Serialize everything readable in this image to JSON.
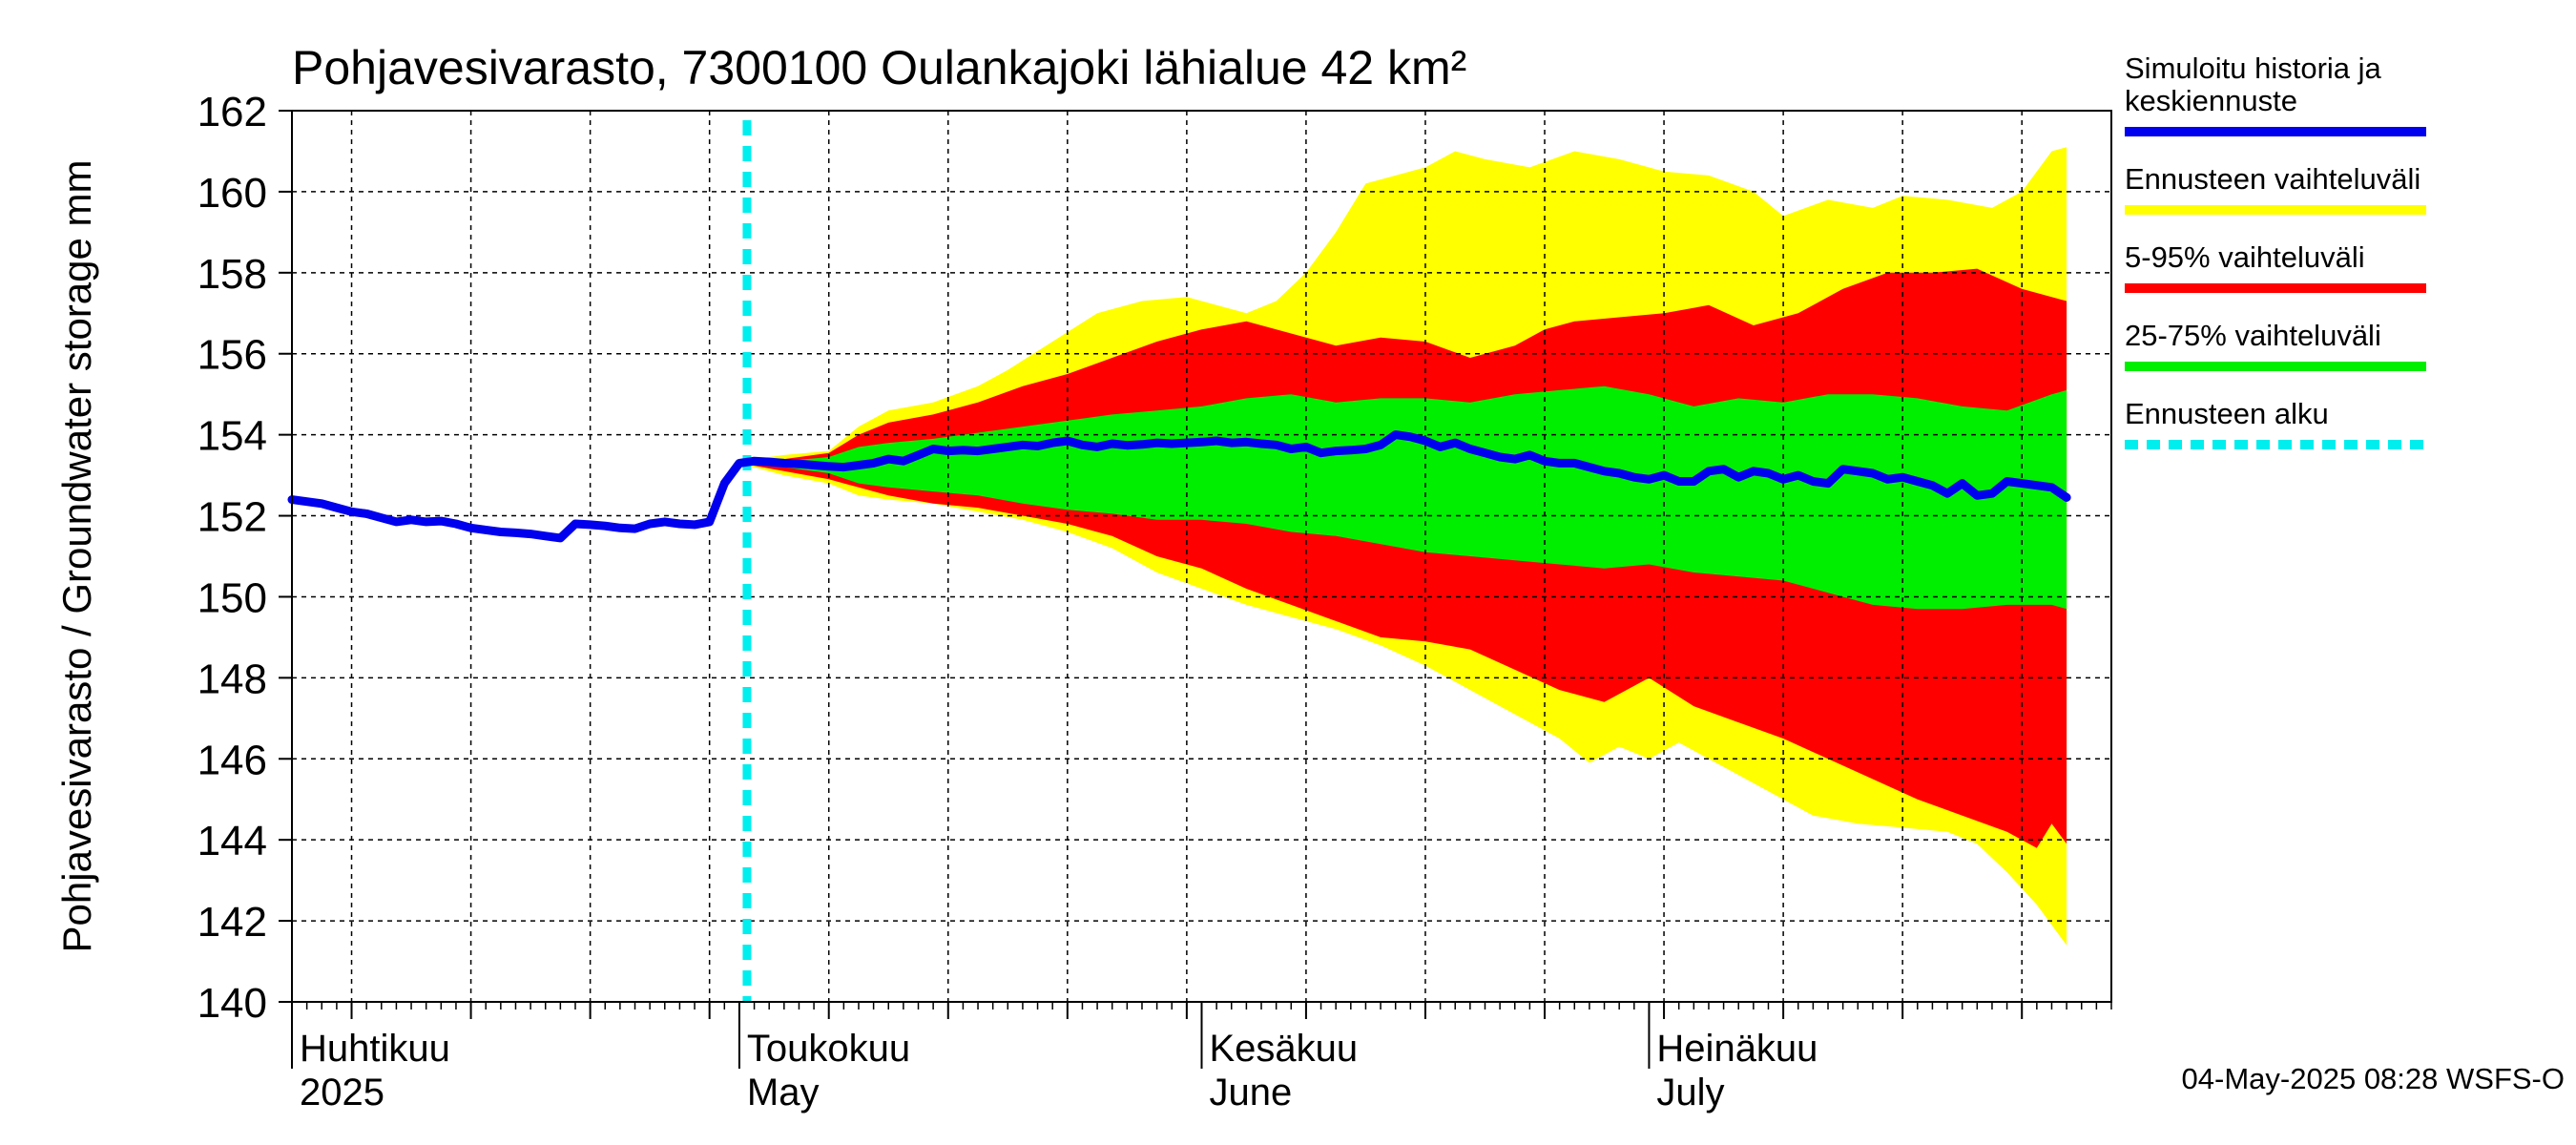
{
  "chart_data": {
    "type": "area",
    "title": "Pohjavesivarasto, 7300100 Oulankajoki lähialue 42 km²",
    "ylabel": "Pohjavesivarasto / Groundwater storage   mm",
    "ylim": [
      140,
      162
    ],
    "yticks": [
      140,
      142,
      144,
      146,
      148,
      150,
      152,
      154,
      156,
      158,
      160,
      162
    ],
    "x_start": "2025-03-31",
    "x_end": "2025-07-31",
    "forecast_start_day": 30,
    "months": [
      {
        "day": 0,
        "fi": "Huhtikuu",
        "en": "2025"
      },
      {
        "day": 30,
        "fi": "Toukokuu",
        "en": "May"
      },
      {
        "day": 61,
        "fi": "Kesäkuu",
        "en": "June"
      },
      {
        "day": 91,
        "fi": "Heinäkuu",
        "en": "July"
      }
    ],
    "timestamp": "04-May-2025 08:28 WSFS-O",
    "legend": [
      {
        "label": "Simuloitu historia ja keskiennuste",
        "lines": [
          "Simuloitu historia ja",
          "keskiennuste"
        ],
        "color": "#0000ee",
        "style": "solid"
      },
      {
        "label": "Ennusteen vaihteluväli",
        "lines": [
          "Ennusteen vaihteluväli"
        ],
        "color": "#ffff00",
        "style": "solid"
      },
      {
        "label": "5-95% vaihteluväli",
        "lines": [
          "5-95% vaihteluväli"
        ],
        "color": "#ff0000",
        "style": "solid"
      },
      {
        "label": "25-75% vaihteluväli",
        "lines": [
          "25-75% vaihteluväli"
        ],
        "color": "#00ee00",
        "style": "solid"
      },
      {
        "label": "Ennusteen alku",
        "lines": [
          "Ennusteen alku"
        ],
        "color": "#00eeee",
        "style": "dashed"
      }
    ],
    "series": {
      "median": {
        "name": "Simuloitu historia ja keskiennuste",
        "points": [
          [
            0,
            152.4
          ],
          [
            1,
            152.35
          ],
          [
            2,
            152.3
          ],
          [
            3,
            152.2
          ],
          [
            4,
            152.1
          ],
          [
            5,
            152.05
          ],
          [
            6,
            151.95
          ],
          [
            7,
            151.85
          ],
          [
            8,
            151.9
          ],
          [
            9,
            151.85
          ],
          [
            10,
            151.87
          ],
          [
            11,
            151.8
          ],
          [
            12,
            151.7
          ],
          [
            13,
            151.65
          ],
          [
            14,
            151.6
          ],
          [
            15,
            151.58
          ],
          [
            16,
            151.55
          ],
          [
            17,
            151.5
          ],
          [
            18,
            151.45
          ],
          [
            19,
            151.8
          ],
          [
            20,
            151.78
          ],
          [
            21,
            151.75
          ],
          [
            22,
            151.7
          ],
          [
            23,
            151.68
          ],
          [
            24,
            151.8
          ],
          [
            25,
            151.85
          ],
          [
            26,
            151.8
          ],
          [
            27,
            151.78
          ],
          [
            28,
            151.85
          ],
          [
            29,
            152.8
          ],
          [
            30,
            153.3
          ],
          [
            31,
            153.35
          ],
          [
            32,
            153.33
          ],
          [
            33,
            153.3
          ],
          [
            34,
            153.28
          ],
          [
            35,
            153.25
          ],
          [
            36,
            153.22
          ],
          [
            37,
            153.2
          ],
          [
            38,
            153.25
          ],
          [
            39,
            153.3
          ],
          [
            40,
            153.4
          ],
          [
            41,
            153.35
          ],
          [
            42,
            153.5
          ],
          [
            43,
            153.65
          ],
          [
            44,
            153.6
          ],
          [
            45,
            153.62
          ],
          [
            46,
            153.6
          ],
          [
            47,
            153.65
          ],
          [
            48,
            153.7
          ],
          [
            49,
            153.75
          ],
          [
            50,
            153.72
          ],
          [
            51,
            153.8
          ],
          [
            52,
            153.85
          ],
          [
            53,
            153.75
          ],
          [
            54,
            153.7
          ],
          [
            55,
            153.78
          ],
          [
            56,
            153.74
          ],
          [
            57,
            153.76
          ],
          [
            58,
            153.8
          ],
          [
            59,
            153.78
          ],
          [
            60,
            153.8
          ],
          [
            61,
            153.82
          ],
          [
            62,
            153.85
          ],
          [
            63,
            153.8
          ],
          [
            64,
            153.82
          ],
          [
            65,
            153.78
          ],
          [
            66,
            153.75
          ],
          [
            67,
            153.65
          ],
          [
            68,
            153.7
          ],
          [
            69,
            153.55
          ],
          [
            70,
            153.6
          ],
          [
            71,
            153.62
          ],
          [
            72,
            153.65
          ],
          [
            73,
            153.75
          ],
          [
            74,
            154.0
          ],
          [
            75,
            153.95
          ],
          [
            76,
            153.85
          ],
          [
            77,
            153.7
          ],
          [
            78,
            153.8
          ],
          [
            79,
            153.65
          ],
          [
            80,
            153.55
          ],
          [
            81,
            153.45
          ],
          [
            82,
            153.4
          ],
          [
            83,
            153.5
          ],
          [
            84,
            153.35
          ],
          [
            85,
            153.3
          ],
          [
            86,
            153.3
          ],
          [
            87,
            153.2
          ],
          [
            88,
            153.1
          ],
          [
            89,
            153.05
          ],
          [
            90,
            152.95
          ],
          [
            91,
            152.9
          ],
          [
            92,
            153.0
          ],
          [
            93,
            152.85
          ],
          [
            94,
            152.85
          ],
          [
            95,
            153.1
          ],
          [
            96,
            153.15
          ],
          [
            97,
            152.95
          ],
          [
            98,
            153.1
          ],
          [
            99,
            153.05
          ],
          [
            100,
            152.9
          ],
          [
            101,
            153.0
          ],
          [
            102,
            152.85
          ],
          [
            103,
            152.8
          ],
          [
            104,
            153.15
          ],
          [
            105,
            153.1
          ],
          [
            106,
            153.05
          ],
          [
            107,
            152.9
          ],
          [
            108,
            152.95
          ],
          [
            109,
            152.85
          ],
          [
            110,
            152.75
          ],
          [
            111,
            152.55
          ],
          [
            112,
            152.8
          ],
          [
            113,
            152.5
          ],
          [
            114,
            152.55
          ],
          [
            115,
            152.85
          ],
          [
            116,
            152.8
          ],
          [
            117,
            152.75
          ],
          [
            118,
            152.7
          ],
          [
            119,
            152.45
          ]
        ]
      },
      "yellow_upper": [
        [
          30,
          153.35
        ],
        [
          33,
          153.5
        ],
        [
          36,
          153.6
        ],
        [
          38,
          154.2
        ],
        [
          40,
          154.6
        ],
        [
          43,
          154.8
        ],
        [
          46,
          155.2
        ],
        [
          48,
          155.6
        ],
        [
          51,
          156.3
        ],
        [
          54,
          157.0
        ],
        [
          57,
          157.3
        ],
        [
          60,
          157.4
        ],
        [
          62,
          157.2
        ],
        [
          64,
          157.0
        ],
        [
          66,
          157.3
        ],
        [
          68,
          158.0
        ],
        [
          70,
          159.0
        ],
        [
          72,
          160.2
        ],
        [
          74,
          160.4
        ],
        [
          76,
          160.6
        ],
        [
          78,
          161.0
        ],
        [
          80,
          160.8
        ],
        [
          83,
          160.6
        ],
        [
          86,
          161.0
        ],
        [
          89,
          160.8
        ],
        [
          92,
          160.5
        ],
        [
          95,
          160.4
        ],
        [
          98,
          160.0
        ],
        [
          100,
          159.4
        ],
        [
          103,
          159.8
        ],
        [
          106,
          159.6
        ],
        [
          108,
          159.9
        ],
        [
          111,
          159.8
        ],
        [
          114,
          159.6
        ],
        [
          116,
          160.0
        ],
        [
          118,
          161.0
        ],
        [
          119,
          161.1
        ]
      ],
      "red_upper": [
        [
          30,
          153.3
        ],
        [
          33,
          153.4
        ],
        [
          36,
          153.55
        ],
        [
          38,
          154.0
        ],
        [
          40,
          154.3
        ],
        [
          43,
          154.5
        ],
        [
          46,
          154.8
        ],
        [
          49,
          155.2
        ],
        [
          52,
          155.5
        ],
        [
          55,
          155.9
        ],
        [
          58,
          156.3
        ],
        [
          61,
          156.6
        ],
        [
          64,
          156.8
        ],
        [
          67,
          156.5
        ],
        [
          70,
          156.2
        ],
        [
          73,
          156.4
        ],
        [
          76,
          156.3
        ],
        [
          79,
          155.9
        ],
        [
          82,
          156.2
        ],
        [
          84,
          156.6
        ],
        [
          86,
          156.8
        ],
        [
          89,
          156.9
        ],
        [
          92,
          157.0
        ],
        [
          95,
          157.2
        ],
        [
          98,
          156.7
        ],
        [
          101,
          157.0
        ],
        [
          104,
          157.6
        ],
        [
          107,
          158.0
        ],
        [
          110,
          158.0
        ],
        [
          113,
          158.1
        ],
        [
          116,
          157.6
        ],
        [
          119,
          157.3
        ]
      ],
      "green_upper": [
        [
          30,
          153.3
        ],
        [
          33,
          153.35
        ],
        [
          36,
          153.45
        ],
        [
          38,
          153.7
        ],
        [
          40,
          153.8
        ],
        [
          43,
          153.9
        ],
        [
          46,
          154.05
        ],
        [
          49,
          154.2
        ],
        [
          52,
          154.35
        ],
        [
          55,
          154.5
        ],
        [
          58,
          154.6
        ],
        [
          61,
          154.7
        ],
        [
          64,
          154.9
        ],
        [
          67,
          155.0
        ],
        [
          70,
          154.8
        ],
        [
          73,
          154.9
        ],
        [
          76,
          154.9
        ],
        [
          79,
          154.8
        ],
        [
          82,
          155.0
        ],
        [
          85,
          155.1
        ],
        [
          88,
          155.2
        ],
        [
          91,
          155.0
        ],
        [
          94,
          154.7
        ],
        [
          97,
          154.9
        ],
        [
          100,
          154.8
        ],
        [
          103,
          155.0
        ],
        [
          106,
          155.0
        ],
        [
          109,
          154.9
        ],
        [
          112,
          154.7
        ],
        [
          115,
          154.6
        ],
        [
          118,
          155.0
        ],
        [
          119,
          155.1
        ]
      ],
      "green_lower": [
        [
          30,
          153.3
        ],
        [
          33,
          153.2
        ],
        [
          36,
          153.05
        ],
        [
          38,
          152.8
        ],
        [
          40,
          152.7
        ],
        [
          43,
          152.6
        ],
        [
          46,
          152.5
        ],
        [
          49,
          152.3
        ],
        [
          52,
          152.15
        ],
        [
          55,
          152.05
        ],
        [
          58,
          151.9
        ],
        [
          61,
          151.9
        ],
        [
          64,
          151.8
        ],
        [
          67,
          151.6
        ],
        [
          70,
          151.5
        ],
        [
          73,
          151.3
        ],
        [
          76,
          151.1
        ],
        [
          79,
          151.0
        ],
        [
          82,
          150.9
        ],
        [
          85,
          150.8
        ],
        [
          88,
          150.7
        ],
        [
          91,
          150.8
        ],
        [
          94,
          150.6
        ],
        [
          97,
          150.5
        ],
        [
          100,
          150.4
        ],
        [
          103,
          150.1
        ],
        [
          106,
          149.8
        ],
        [
          109,
          149.7
        ],
        [
          112,
          149.7
        ],
        [
          115,
          149.8
        ],
        [
          118,
          149.8
        ],
        [
          119,
          149.7
        ]
      ],
      "red_lower": [
        [
          30,
          153.3
        ],
        [
          33,
          153.1
        ],
        [
          36,
          152.9
        ],
        [
          38,
          152.7
        ],
        [
          40,
          152.5
        ],
        [
          43,
          152.3
        ],
        [
          46,
          152.2
        ],
        [
          49,
          152.0
        ],
        [
          52,
          151.8
        ],
        [
          55,
          151.5
        ],
        [
          58,
          151.0
        ],
        [
          61,
          150.7
        ],
        [
          64,
          150.2
        ],
        [
          67,
          149.8
        ],
        [
          70,
          149.4
        ],
        [
          73,
          149.0
        ],
        [
          76,
          148.9
        ],
        [
          79,
          148.7
        ],
        [
          82,
          148.2
        ],
        [
          85,
          147.7
        ],
        [
          88,
          147.4
        ],
        [
          91,
          148.0
        ],
        [
          94,
          147.3
        ],
        [
          97,
          146.9
        ],
        [
          100,
          146.5
        ],
        [
          103,
          146.0
        ],
        [
          106,
          145.5
        ],
        [
          109,
          145.0
        ],
        [
          112,
          144.6
        ],
        [
          115,
          144.2
        ],
        [
          117,
          143.8
        ],
        [
          118,
          144.4
        ],
        [
          119,
          143.9
        ]
      ],
      "yellow_lower": [
        [
          30,
          153.3
        ],
        [
          33,
          153.0
        ],
        [
          36,
          152.8
        ],
        [
          38,
          152.5
        ],
        [
          40,
          152.4
        ],
        [
          43,
          152.3
        ],
        [
          46,
          152.1
        ],
        [
          49,
          151.9
        ],
        [
          52,
          151.6
        ],
        [
          55,
          151.2
        ],
        [
          58,
          150.6
        ],
        [
          61,
          150.2
        ],
        [
          64,
          149.8
        ],
        [
          67,
          149.5
        ],
        [
          70,
          149.2
        ],
        [
          73,
          148.8
        ],
        [
          76,
          148.3
        ],
        [
          79,
          147.7
        ],
        [
          82,
          147.1
        ],
        [
          85,
          146.5
        ],
        [
          87,
          145.9
        ],
        [
          89,
          146.3
        ],
        [
          91,
          146.0
        ],
        [
          93,
          146.4
        ],
        [
          96,
          145.8
        ],
        [
          99,
          145.2
        ],
        [
          102,
          144.6
        ],
        [
          105,
          144.4
        ],
        [
          108,
          144.3
        ],
        [
          111,
          144.2
        ],
        [
          113,
          143.9
        ],
        [
          115,
          143.2
        ],
        [
          117,
          142.4
        ],
        [
          119,
          141.4
        ]
      ]
    }
  }
}
